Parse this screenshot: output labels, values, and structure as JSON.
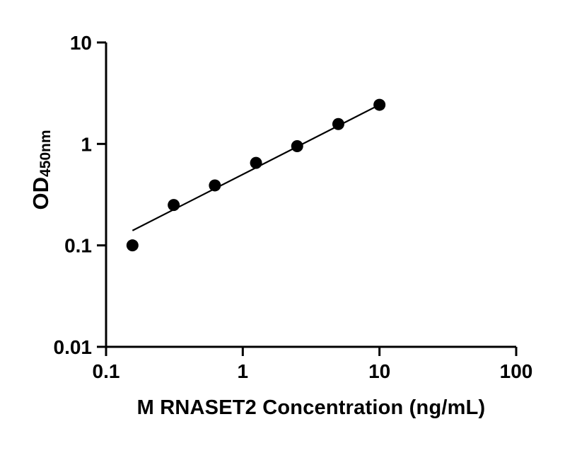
{
  "figure": {
    "background": "#ffffff"
  },
  "chart_data": {
    "type": "scatter",
    "title": "",
    "xlabel": "M RNASET2 Concentration (ng/mL)",
    "ylabel": "OD450nm",
    "ylabel_main": "OD",
    "ylabel_sub": "450nm",
    "x_scale": "log",
    "y_scale": "log",
    "xlim": [
      0.1,
      100
    ],
    "ylim": [
      0.01,
      10
    ],
    "x_ticks": [
      0.1,
      1,
      10,
      100
    ],
    "x_tick_labels": [
      "0.1",
      "1",
      "10",
      "100"
    ],
    "y_ticks": [
      0.01,
      0.1,
      1,
      10
    ],
    "y_tick_labels": [
      "0.01",
      "0.1",
      "1",
      "10"
    ],
    "grid": false,
    "legend": false,
    "series": [
      {
        "points": [
          {
            "x": 0.156,
            "y": 0.1
          },
          {
            "x": 0.3125,
            "y": 0.25
          },
          {
            "x": 0.625,
            "y": 0.39
          },
          {
            "x": 1.25,
            "y": 0.65
          },
          {
            "x": 2.5,
            "y": 0.95
          },
          {
            "x": 5,
            "y": 1.57
          },
          {
            "x": 10,
            "y": 2.43
          }
        ]
      }
    ],
    "trend_line": {
      "x1": 0.156,
      "y1": 0.14,
      "x2": 10,
      "y2": 2.43
    },
    "marker_color": "#000000",
    "line_color": "#000000",
    "axis_color": "#000000"
  }
}
